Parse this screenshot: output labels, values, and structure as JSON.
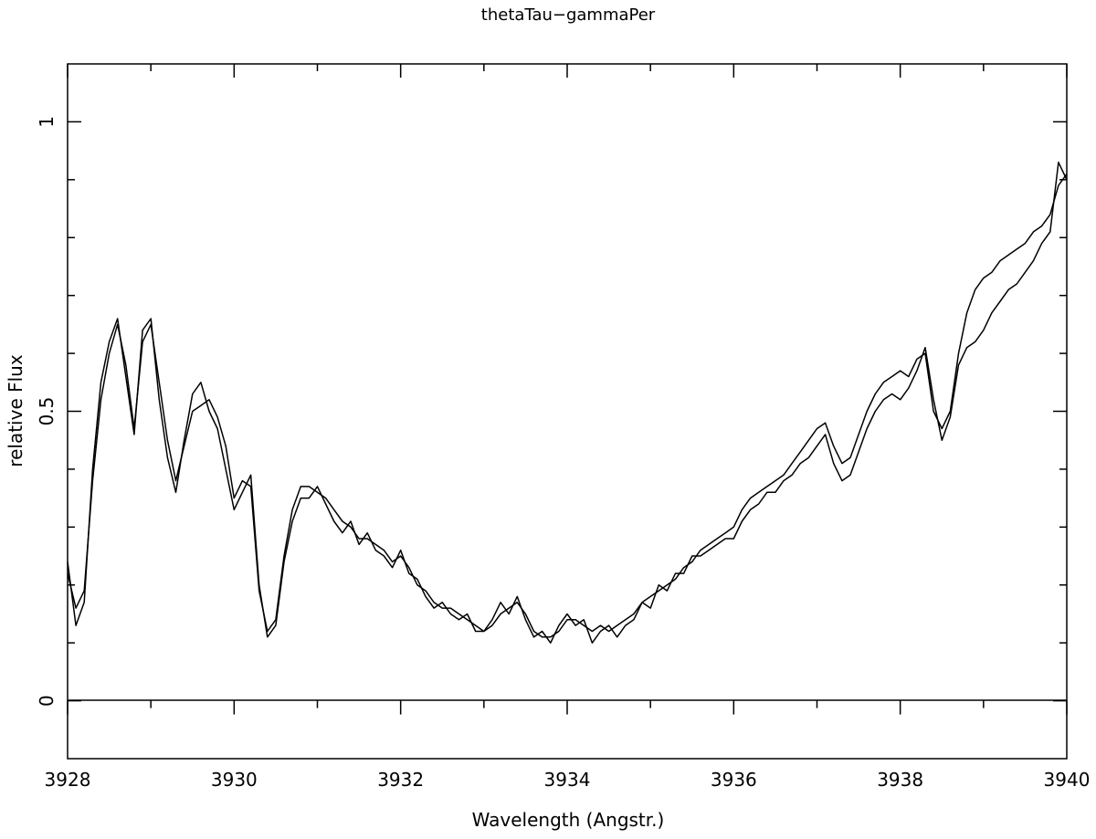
{
  "chart_data": {
    "type": "line",
    "title": "thetaTau−gammaPer",
    "xlabel": "Wavelength (Angstr.)",
    "ylabel": "relative Flux",
    "xlim": [
      3928,
      3940
    ],
    "ylim": [
      -0.1,
      1.1
    ],
    "x_ticks_major": [
      3928,
      3930,
      3932,
      3934,
      3936,
      3938,
      3940
    ],
    "x_tick_labels": [
      "3928",
      "3930",
      "3932",
      "3934",
      "3936",
      "3938",
      "3940"
    ],
    "y_ticks_major": [
      0,
      0.5,
      1
    ],
    "y_tick_labels": [
      "0",
      "0.5",
      "1"
    ],
    "x_ticks_minor_step": 1,
    "y_ticks_minor_step": 0.1,
    "zero_line": true,
    "grid": false,
    "legend": "none",
    "series": [
      {
        "color": "#000000",
        "x": [
          3928.0,
          3928.1,
          3928.2,
          3928.3,
          3928.4,
          3928.5,
          3928.6,
          3928.7,
          3928.8,
          3928.9,
          3929.0,
          3929.1,
          3929.2,
          3929.3,
          3929.4,
          3929.5,
          3929.6,
          3929.7,
          3929.8,
          3929.9,
          3930.0,
          3930.1,
          3930.2,
          3930.3,
          3930.4,
          3930.5,
          3930.6,
          3930.7,
          3930.8,
          3930.9,
          3931.0,
          3931.1,
          3931.2,
          3931.3,
          3931.4,
          3931.5,
          3931.6,
          3931.7,
          3931.8,
          3931.9,
          3932.0,
          3932.1,
          3932.2,
          3932.3,
          3932.4,
          3932.5,
          3932.6,
          3932.7,
          3932.8,
          3932.9,
          3933.0,
          3933.1,
          3933.2,
          3933.3,
          3933.4,
          3933.5,
          3933.6,
          3933.7,
          3933.8,
          3933.9,
          3934.0,
          3934.1,
          3934.2,
          3934.3,
          3934.4,
          3934.5,
          3934.6,
          3934.7,
          3934.8,
          3934.9,
          3935.0,
          3935.1,
          3935.2,
          3935.3,
          3935.4,
          3935.5,
          3935.6,
          3935.7,
          3935.8,
          3935.9,
          3936.0,
          3936.1,
          3936.2,
          3936.3,
          3936.4,
          3936.5,
          3936.6,
          3936.7,
          3936.8,
          3936.9,
          3937.0,
          3937.1,
          3937.2,
          3937.3,
          3937.4,
          3937.5,
          3937.6,
          3937.7,
          3937.8,
          3937.9,
          3938.0,
          3938.1,
          3938.2,
          3938.3,
          3938.4,
          3938.5,
          3938.6,
          3938.7,
          3938.8,
          3938.9,
          3939.0,
          3939.1,
          3939.2,
          3939.3,
          3939.4,
          3939.5,
          3939.6,
          3939.7,
          3939.8,
          3939.9,
          3940.0
        ],
        "y": [
          0.22,
          0.16,
          0.19,
          0.38,
          0.52,
          0.6,
          0.65,
          0.58,
          0.47,
          0.62,
          0.65,
          0.55,
          0.45,
          0.38,
          0.44,
          0.5,
          0.51,
          0.52,
          0.49,
          0.44,
          0.35,
          0.38,
          0.37,
          0.19,
          0.12,
          0.14,
          0.25,
          0.33,
          0.37,
          0.37,
          0.36,
          0.35,
          0.33,
          0.31,
          0.3,
          0.28,
          0.28,
          0.27,
          0.26,
          0.24,
          0.25,
          0.23,
          0.2,
          0.19,
          0.17,
          0.16,
          0.16,
          0.15,
          0.14,
          0.13,
          0.12,
          0.13,
          0.15,
          0.16,
          0.17,
          0.15,
          0.12,
          0.11,
          0.11,
          0.12,
          0.14,
          0.14,
          0.13,
          0.12,
          0.13,
          0.12,
          0.13,
          0.14,
          0.15,
          0.17,
          0.18,
          0.19,
          0.2,
          0.21,
          0.23,
          0.24,
          0.26,
          0.27,
          0.28,
          0.29,
          0.3,
          0.33,
          0.35,
          0.36,
          0.37,
          0.38,
          0.39,
          0.41,
          0.43,
          0.45,
          0.47,
          0.48,
          0.44,
          0.41,
          0.42,
          0.46,
          0.5,
          0.53,
          0.55,
          0.56,
          0.57,
          0.56,
          0.59,
          0.6,
          0.5,
          0.47,
          0.5,
          0.6,
          0.67,
          0.71,
          0.73,
          0.74,
          0.76,
          0.77,
          0.78,
          0.79,
          0.81,
          0.82,
          0.84,
          0.89,
          0.91
        ]
      },
      {
        "color": "#000000",
        "x": [
          3928.0,
          3928.1,
          3928.2,
          3928.3,
          3928.4,
          3928.5,
          3928.6,
          3928.7,
          3928.8,
          3928.9,
          3929.0,
          3929.1,
          3929.2,
          3929.3,
          3929.4,
          3929.5,
          3929.6,
          3929.7,
          3929.8,
          3929.9,
          3930.0,
          3930.1,
          3930.2,
          3930.3,
          3930.4,
          3930.5,
          3930.6,
          3930.7,
          3930.8,
          3930.9,
          3931.0,
          3931.1,
          3931.2,
          3931.3,
          3931.4,
          3931.5,
          3931.6,
          3931.7,
          3931.8,
          3931.9,
          3932.0,
          3932.1,
          3932.2,
          3932.3,
          3932.4,
          3932.5,
          3932.6,
          3932.7,
          3932.8,
          3932.9,
          3933.0,
          3933.1,
          3933.2,
          3933.3,
          3933.4,
          3933.5,
          3933.6,
          3933.7,
          3933.8,
          3933.9,
          3934.0,
          3934.1,
          3934.2,
          3934.3,
          3934.4,
          3934.5,
          3934.6,
          3934.7,
          3934.8,
          3934.9,
          3935.0,
          3935.1,
          3935.2,
          3935.3,
          3935.4,
          3935.5,
          3935.6,
          3935.7,
          3935.8,
          3935.9,
          3936.0,
          3936.1,
          3936.2,
          3936.3,
          3936.4,
          3936.5,
          3936.6,
          3936.7,
          3936.8,
          3936.9,
          3937.0,
          3937.1,
          3937.2,
          3937.3,
          3937.4,
          3937.5,
          3937.6,
          3937.7,
          3937.8,
          3937.9,
          3938.0,
          3938.1,
          3938.2,
          3938.3,
          3938.4,
          3938.5,
          3938.6,
          3938.7,
          3938.8,
          3938.9,
          3939.0,
          3939.1,
          3939.2,
          3939.3,
          3939.4,
          3939.5,
          3939.6,
          3939.7,
          3939.8,
          3939.9,
          3940.0
        ],
        "y": [
          0.24,
          0.13,
          0.17,
          0.4,
          0.55,
          0.62,
          0.66,
          0.56,
          0.46,
          0.64,
          0.66,
          0.52,
          0.42,
          0.36,
          0.45,
          0.53,
          0.55,
          0.5,
          0.47,
          0.4,
          0.33,
          0.36,
          0.39,
          0.2,
          0.11,
          0.13,
          0.24,
          0.31,
          0.35,
          0.35,
          0.37,
          0.34,
          0.31,
          0.29,
          0.31,
          0.27,
          0.29,
          0.26,
          0.25,
          0.23,
          0.26,
          0.22,
          0.21,
          0.18,
          0.16,
          0.17,
          0.15,
          0.14,
          0.15,
          0.12,
          0.12,
          0.14,
          0.17,
          0.15,
          0.18,
          0.14,
          0.11,
          0.12,
          0.1,
          0.13,
          0.15,
          0.13,
          0.14,
          0.1,
          0.12,
          0.13,
          0.11,
          0.13,
          0.14,
          0.17,
          0.16,
          0.2,
          0.19,
          0.22,
          0.22,
          0.25,
          0.25,
          0.26,
          0.27,
          0.28,
          0.28,
          0.31,
          0.33,
          0.34,
          0.36,
          0.36,
          0.38,
          0.39,
          0.41,
          0.42,
          0.44,
          0.46,
          0.41,
          0.38,
          0.39,
          0.43,
          0.47,
          0.5,
          0.52,
          0.53,
          0.52,
          0.54,
          0.57,
          0.61,
          0.52,
          0.45,
          0.49,
          0.58,
          0.61,
          0.62,
          0.64,
          0.67,
          0.69,
          0.71,
          0.72,
          0.74,
          0.76,
          0.79,
          0.81,
          0.93,
          0.9
        ]
      }
    ]
  }
}
